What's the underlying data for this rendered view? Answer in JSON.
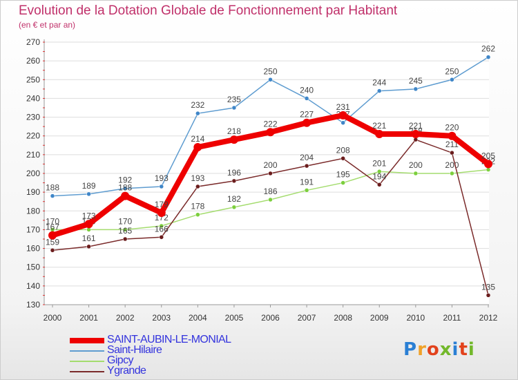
{
  "title": "Evolution de la Dotation Globale de Fonctionnement par Habitant",
  "subtitle": "(en € et par an)",
  "logo": {
    "text": "Proxiti",
    "letter_colors": [
      "#2a7fd4",
      "#f0a22a",
      "#e2421c",
      "#72b82a",
      "#2a7fd4",
      "#e2421c",
      "#72b82a"
    ]
  },
  "chart_data": {
    "type": "line",
    "x": [
      "2000",
      "2001",
      "2002",
      "2003",
      "2004",
      "2005",
      "2006",
      "2007",
      "2008",
      "2009",
      "2010",
      "2011",
      "2012"
    ],
    "ylim": [
      130,
      270
    ],
    "yticks": [
      130,
      140,
      150,
      160,
      170,
      180,
      190,
      200,
      210,
      220,
      230,
      240,
      250,
      260,
      270
    ],
    "grid": "horizontal",
    "legend": "bottom-left",
    "series": [
      {
        "name": "Saint-Hilaire",
        "color": "#5e9cd0",
        "width": 1.5,
        "marker": "#3f86c8",
        "values": [
          188,
          189,
          192,
          193,
          232,
          235,
          250,
          240,
          227,
          244,
          245,
          250,
          262
        ]
      },
      {
        "name": "Gipcy",
        "color": "#a4dc6e",
        "width": 1.5,
        "marker": "#7ccf3d",
        "values": [
          170,
          170,
          170,
          172,
          178,
          182,
          186,
          191,
          195,
          201,
          200,
          200,
          202
        ]
      },
      {
        "name": "Ygrande",
        "color": "#7a2a2a",
        "width": 1.5,
        "marker": "#6b1d1d",
        "values": [
          159,
          161,
          165,
          166,
          193,
          196,
          200,
          204,
          208,
          194,
          218,
          211,
          135
        ]
      },
      {
        "name": "SAINT-AUBIN-LE-MONIAL",
        "color": "#ee0000",
        "width": 8,
        "marker": "#ee0000",
        "values": [
          167,
          173,
          188,
          179,
          214,
          218,
          222,
          227,
          231,
          221,
          221,
          220,
          205
        ]
      }
    ],
    "legend_order": [
      "SAINT-AUBIN-LE-MONIAL",
      "Saint-Hilaire",
      "Gipcy",
      "Ygrande"
    ]
  }
}
